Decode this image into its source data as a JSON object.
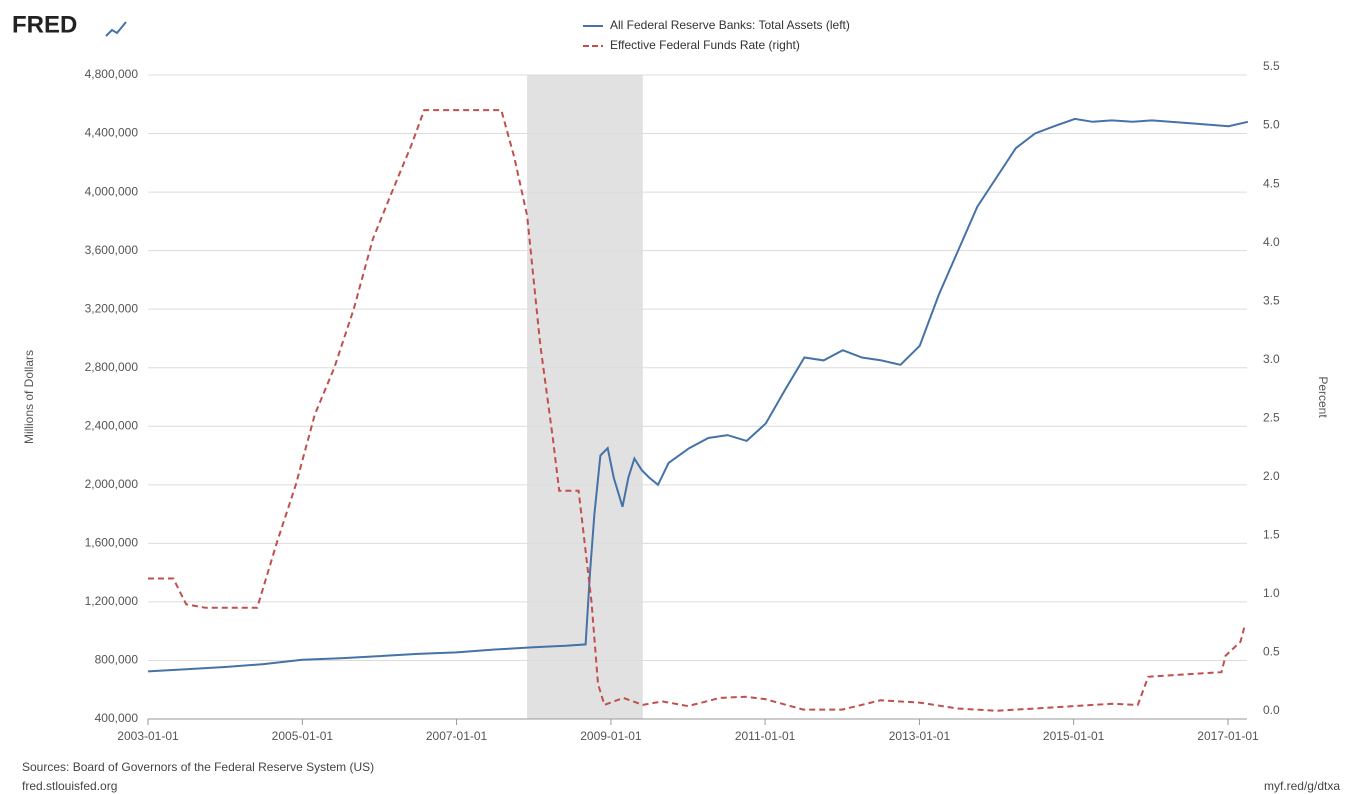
{
  "brand": "FRED",
  "footer": {
    "sources": "Sources: Board of Governors of the Federal Reserve System (US)",
    "site": "fred.stlouisfed.org",
    "link": "myf.red/g/dtxa"
  },
  "chart_data": {
    "type": "line",
    "ylabel": "Millions of Dollars",
    "y2label": "Percent",
    "xlim": [
      "2003-01-01",
      "2017-04-01"
    ],
    "xticks": [
      "2003-01-01",
      "2005-01-01",
      "2007-01-01",
      "2009-01-01",
      "2011-01-01",
      "2013-01-01",
      "2015-01-01",
      "2017-01-01"
    ],
    "ylim": [
      400000,
      4800000
    ],
    "yticks": [
      {
        "value": 400000,
        "label": "400,000"
      },
      {
        "value": 800000,
        "label": "800,000"
      },
      {
        "value": 1200000,
        "label": "1,200,000"
      },
      {
        "value": 1600000,
        "label": "1,600,000"
      },
      {
        "value": 2000000,
        "label": "2,000,000"
      },
      {
        "value": 2400000,
        "label": "2,400,000"
      },
      {
        "value": 2800000,
        "label": "2,800,000"
      },
      {
        "value": 3200000,
        "label": "3,200,000"
      },
      {
        "value": 3600000,
        "label": "3,600,000"
      },
      {
        "value": 4000000,
        "label": "4,000,000"
      },
      {
        "value": 4400000,
        "label": "4,400,000"
      },
      {
        "value": 4800000,
        "label": "4,800,000"
      }
    ],
    "y2lim": [
      0,
      5.5
    ],
    "y2ticks": [
      {
        "value": 0,
        "label": "0.0"
      },
      0.5,
      {
        "value": 1,
        "label": "1.0"
      },
      1.5,
      {
        "value": 2,
        "label": "2.0"
      },
      2.5,
      {
        "value": 3,
        "label": "3.0"
      },
      3.5,
      {
        "value": 4,
        "label": "4.0"
      },
      4.5,
      {
        "value": 5,
        "label": "5.0"
      },
      5.5
    ],
    "grid": true,
    "recessions": [
      [
        "2007-12-01",
        "2009-06-01"
      ]
    ],
    "series": [
      {
        "name": "All Federal Reserve Banks: Total Assets (left)",
        "color": "#4572a7",
        "dash": "none",
        "axis": "y",
        "x": [
          "2003-01-01",
          "2003-07-01",
          "2004-01-01",
          "2004-07-01",
          "2005-01-01",
          "2005-07-01",
          "2006-01-01",
          "2006-07-01",
          "2007-01-01",
          "2007-07-01",
          "2008-01-01",
          "2008-06-01",
          "2008-09-03",
          "2008-09-24",
          "2008-10-15",
          "2008-11-12",
          "2008-12-17",
          "2009-01-14",
          "2009-02-25",
          "2009-03-25",
          "2009-04-22",
          "2009-05-27",
          "2009-07-01",
          "2009-08-12",
          "2009-10-01",
          "2010-01-06",
          "2010-04-07",
          "2010-07-07",
          "2010-10-06",
          "2011-01-05",
          "2011-04-06",
          "2011-07-06",
          "2011-10-05",
          "2012-01-04",
          "2012-04-04",
          "2012-07-04",
          "2012-10-03",
          "2013-01-02",
          "2013-04-03",
          "2013-07-03",
          "2013-10-02",
          "2014-01-01",
          "2014-04-02",
          "2014-07-02",
          "2014-10-01",
          "2015-01-07",
          "2015-04-01",
          "2015-07-01",
          "2015-10-07",
          "2016-01-06",
          "2016-07-06",
          "2017-01-04",
          "2017-04-05"
        ],
        "values": [
          725000,
          740000,
          755000,
          775000,
          805000,
          815000,
          830000,
          845000,
          855000,
          875000,
          890000,
          900000,
          910000,
          1400000,
          1800000,
          2200000,
          2250000,
          2050000,
          1850000,
          2050000,
          2180000,
          2100000,
          2050000,
          2000000,
          2150000,
          2250000,
          2320000,
          2340000,
          2300000,
          2420000,
          2650000,
          2870000,
          2850000,
          2920000,
          2870000,
          2850000,
          2820000,
          2950000,
          3300000,
          3600000,
          3900000,
          4100000,
          4300000,
          4400000,
          4450000,
          4500000,
          4480000,
          4490000,
          4480000,
          4490000,
          4470000,
          4450000,
          4480000
        ]
      },
      {
        "name": "Effective Federal Funds Rate (right)",
        "color": "#c0504d",
        "dash": "6,4",
        "axis": "y2",
        "x": [
          "2003-01-01",
          "2003-05-01",
          "2003-07-01",
          "2003-10-01",
          "2004-01-01",
          "2004-06-01",
          "2004-09-01",
          "2004-12-01",
          "2005-03-01",
          "2005-06-01",
          "2005-09-01",
          "2005-12-01",
          "2006-03-01",
          "2006-06-01",
          "2006-08-01",
          "2007-08-01",
          "2007-10-01",
          "2007-12-01",
          "2008-02-01",
          "2008-04-01",
          "2008-05-01",
          "2008-08-01",
          "2008-10-01",
          "2008-11-01",
          "2008-12-01",
          "2009-03-01",
          "2009-06-01",
          "2009-09-01",
          "2010-01-01",
          "2010-06-01",
          "2010-10-01",
          "2011-01-01",
          "2011-07-01",
          "2012-01-01",
          "2012-07-01",
          "2013-01-01",
          "2013-07-01",
          "2014-01-01",
          "2014-07-01",
          "2015-01-01",
          "2015-07-01",
          "2015-11-01",
          "2015-12-20",
          "2016-06-01",
          "2016-12-01",
          "2016-12-20",
          "2017-03-01",
          "2017-03-20"
        ],
        "values": [
          1.2,
          1.2,
          0.98,
          0.95,
          0.95,
          0.95,
          1.5,
          2.0,
          2.6,
          3.0,
          3.5,
          4.1,
          4.5,
          4.9,
          5.2,
          5.2,
          4.8,
          4.3,
          3.2,
          2.4,
          1.95,
          1.95,
          1.0,
          0.3,
          0.12,
          0.18,
          0.12,
          0.15,
          0.11,
          0.18,
          0.19,
          0.17,
          0.08,
          0.08,
          0.16,
          0.14,
          0.09,
          0.07,
          0.09,
          0.11,
          0.13,
          0.12,
          0.36,
          0.38,
          0.4,
          0.54,
          0.66,
          0.79
        ]
      }
    ]
  }
}
